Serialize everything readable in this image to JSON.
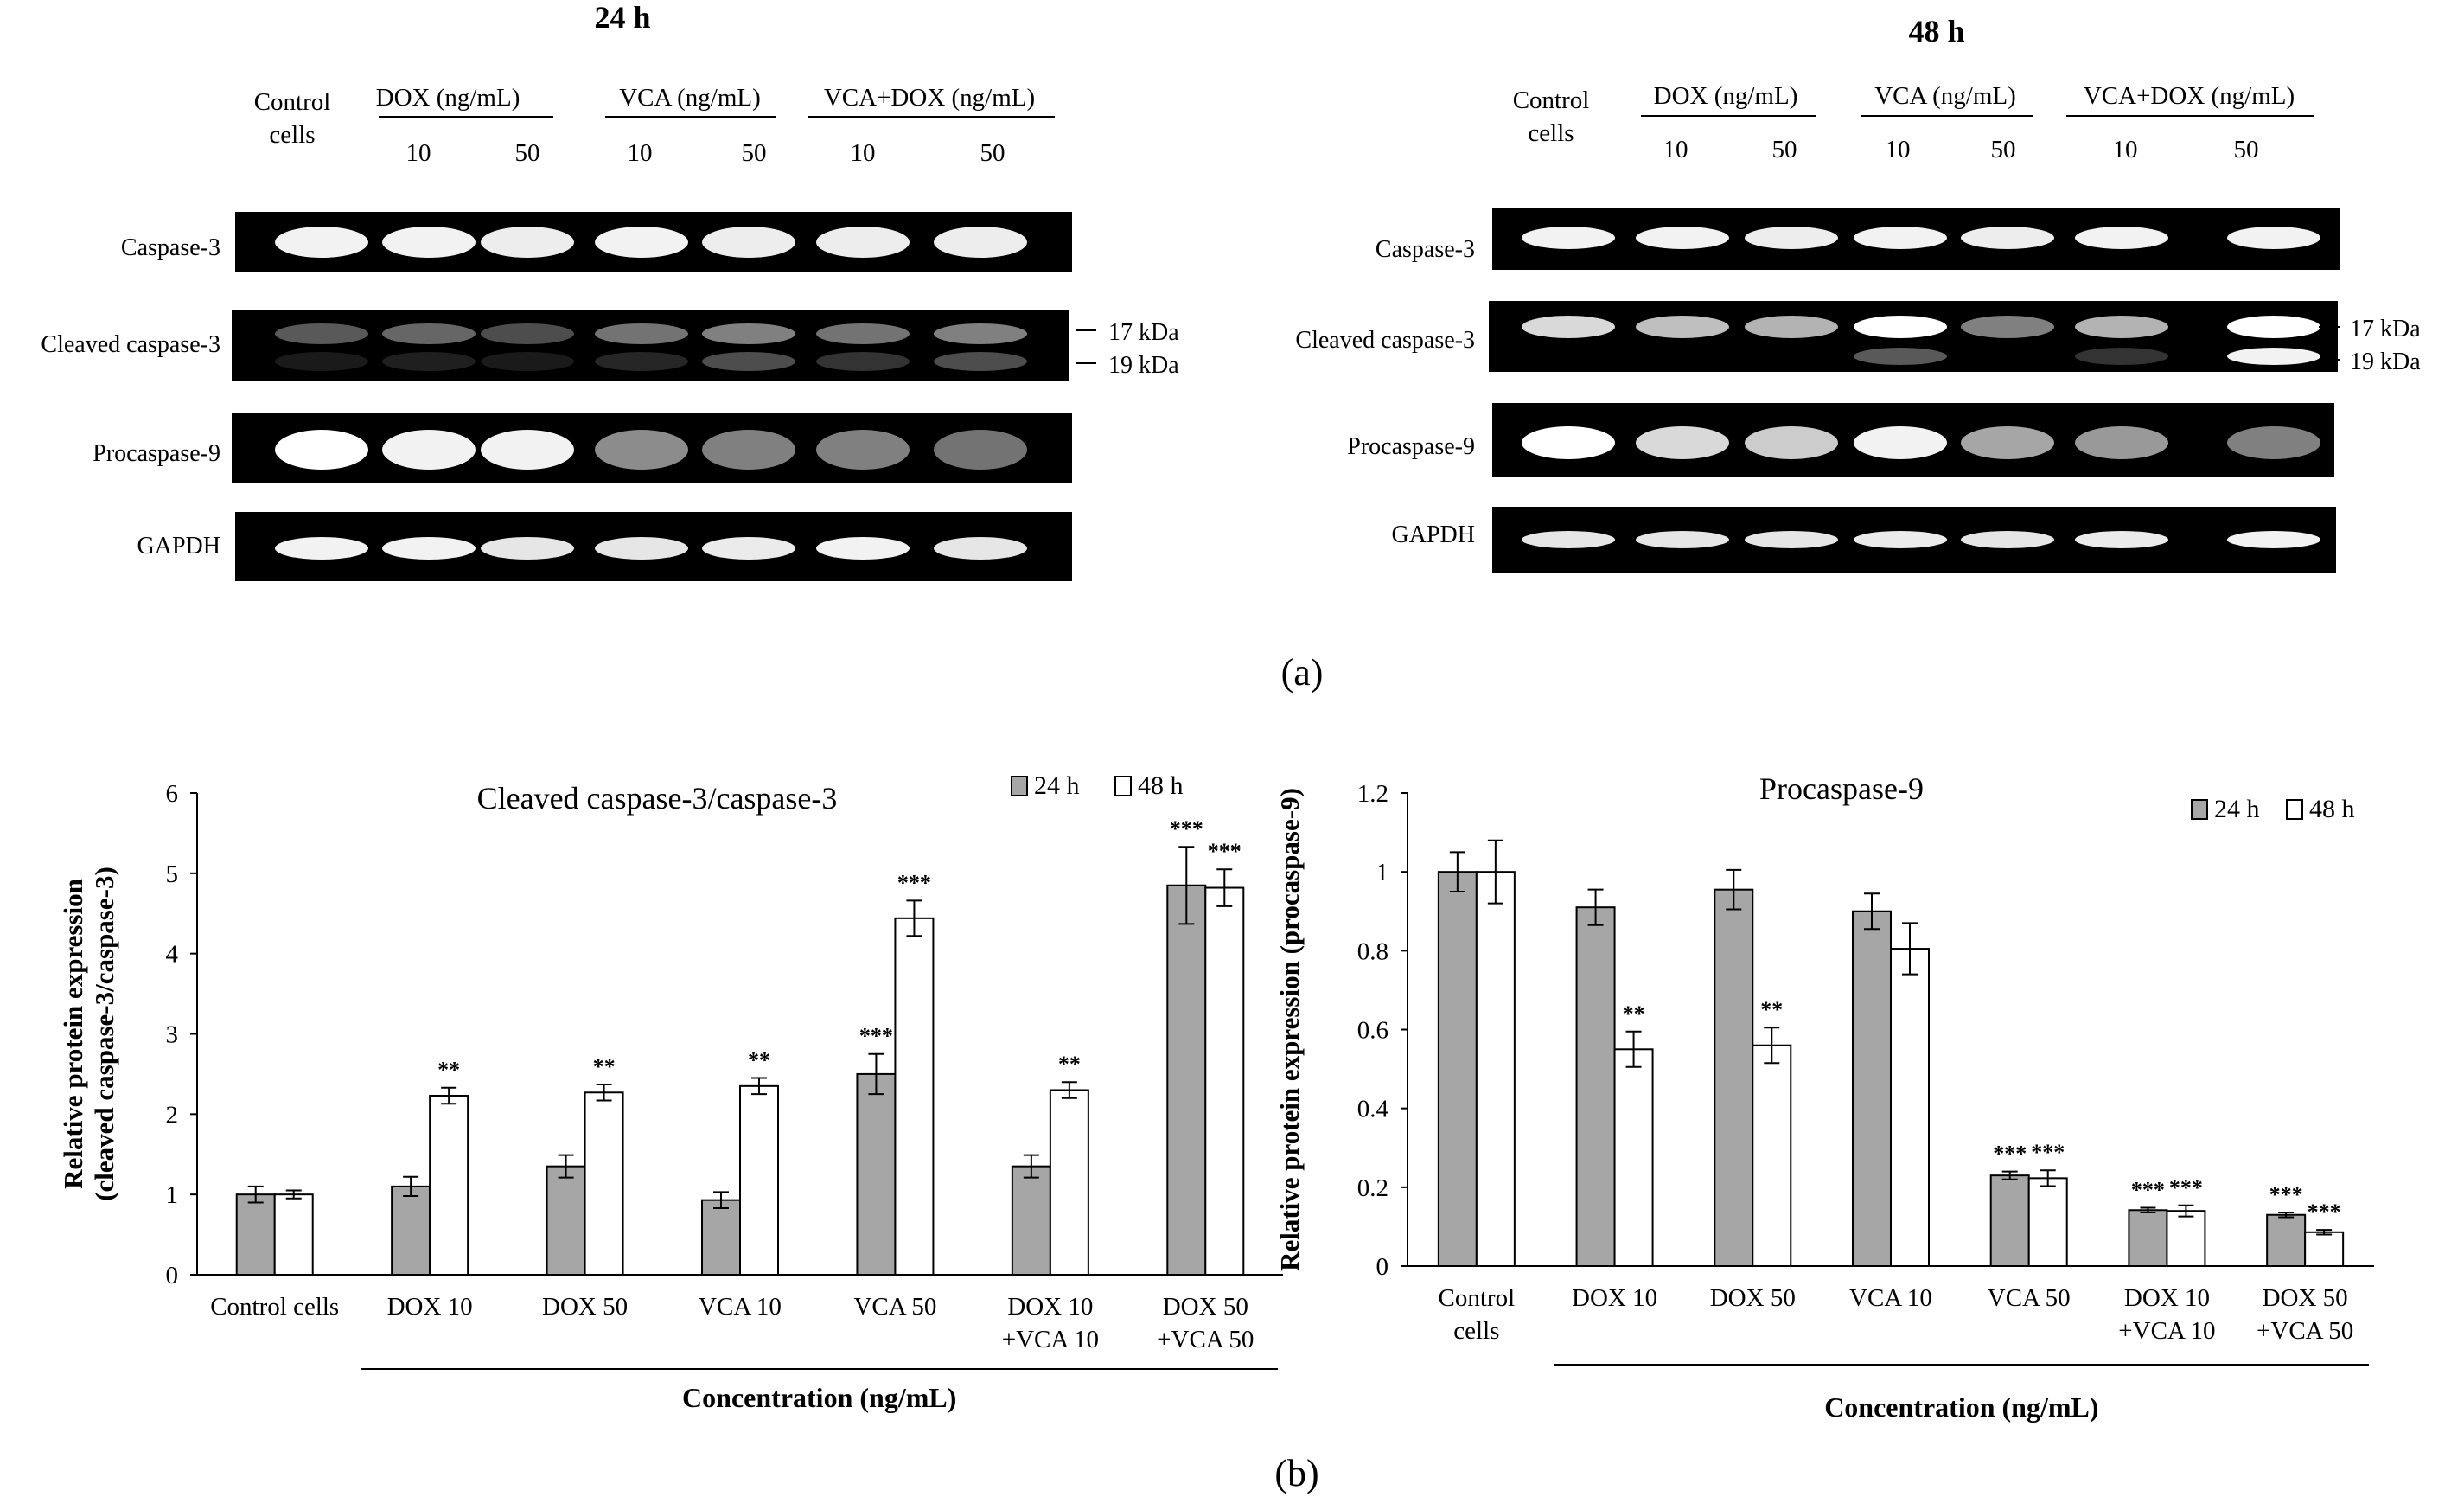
{
  "panel_a": {
    "caption": "(a)",
    "blots": [
      {
        "title": "24 h",
        "control_line1": "Control",
        "control_line2": "cells",
        "groups": [
          "DOX (ng/mL)",
          "VCA (ng/mL)",
          "VCA+DOX (ng/mL)"
        ],
        "doses": [
          "10",
          "50",
          "10",
          "50",
          "10",
          "50"
        ],
        "rows": [
          "Caspase-3",
          "Cleaved caspase-3",
          "Procaspase-9",
          "GAPDH"
        ],
        "markers": [
          "17 kDa",
          "19 kDa"
        ]
      },
      {
        "title": "48 h",
        "control_line1": "Control",
        "control_line2": "cells",
        "groups": [
          "DOX (ng/mL)",
          "VCA (ng/mL)",
          "VCA+DOX (ng/mL)"
        ],
        "doses": [
          "10",
          "50",
          "10",
          "50",
          "10",
          "50"
        ],
        "rows": [
          "Caspase-3",
          "Cleaved caspase-3",
          "Procaspase-9",
          "GAPDH"
        ],
        "markers": [
          "17 kDa",
          "19 kDa"
        ]
      }
    ]
  },
  "panel_b": {
    "caption": "(b)"
  },
  "colors": {
    "bar_24h": "#a6a6a6",
    "bar_48h": "#ffffff",
    "outline": "#000000",
    "blot_bg": "#000000",
    "band": "#ffffff"
  },
  "chart_data": [
    {
      "type": "bar",
      "title": "Cleaved caspase-3/caspase-3",
      "xlabel": "Concentration (ng/mL)",
      "ylabel": "Relative protein expression",
      "ylabel2": "(cleaved caspase-3/caspase-3)",
      "ylim": [
        0,
        6
      ],
      "yticks": [
        "0",
        "1",
        "2",
        "3",
        "4",
        "5",
        "6"
      ],
      "categories": [
        [
          "Control cells"
        ],
        [
          "DOX 10"
        ],
        [
          "DOX 50"
        ],
        [
          "VCA 10"
        ],
        [
          "VCA 50"
        ],
        [
          "DOX 10",
          "+VCA 10"
        ],
        [
          "DOX 50",
          "+VCA 50"
        ]
      ],
      "legend": "top-right",
      "series": [
        {
          "name": "24 h",
          "values": [
            1.0,
            1.1,
            1.35,
            0.93,
            2.5,
            1.35,
            4.85
          ],
          "errors": [
            0.1,
            0.12,
            0.14,
            0.1,
            0.25,
            0.14,
            0.48
          ],
          "sig": [
            "",
            "",
            "",
            "",
            "***",
            "",
            "***"
          ]
        },
        {
          "name": "48 h",
          "values": [
            1.0,
            2.23,
            2.27,
            2.35,
            4.44,
            2.3,
            4.82
          ],
          "errors": [
            0.05,
            0.1,
            0.1,
            0.1,
            0.22,
            0.1,
            0.23
          ],
          "sig": [
            "",
            "**",
            "**",
            "**",
            "***",
            "**",
            "***"
          ]
        }
      ]
    },
    {
      "type": "bar",
      "title": "Procaspase-9",
      "xlabel": "Concentration (ng/mL)",
      "ylabel": "Relative protein expression (procaspase-9)",
      "ylim": [
        0,
        1.2
      ],
      "yticks": [
        "0",
        "0.2",
        "0.4",
        "0.6",
        "0.8",
        "1",
        "1.2"
      ],
      "categories": [
        [
          "Control",
          "cells"
        ],
        [
          "DOX 10"
        ],
        [
          "DOX 50"
        ],
        [
          "VCA 10"
        ],
        [
          "VCA 50"
        ],
        [
          "DOX 10",
          "+VCA 10"
        ],
        [
          "DOX 50",
          "+VCA 50"
        ]
      ],
      "legend": "top-right",
      "series": [
        {
          "name": "24 h",
          "values": [
            1.0,
            0.91,
            0.955,
            0.9,
            0.23,
            0.142,
            0.13
          ],
          "errors": [
            0.05,
            0.045,
            0.05,
            0.045,
            0.01,
            0.006,
            0.006
          ],
          "sig": [
            "",
            "",
            "",
            "",
            "***",
            "***",
            "***"
          ]
        },
        {
          "name": "48 h",
          "values": [
            1.0,
            0.55,
            0.56,
            0.805,
            0.223,
            0.14,
            0.086
          ],
          "errors": [
            0.08,
            0.045,
            0.045,
            0.065,
            0.02,
            0.014,
            0.006
          ],
          "sig": [
            "",
            "**",
            "**",
            "",
            "***",
            "***",
            "***"
          ]
        }
      ]
    }
  ]
}
